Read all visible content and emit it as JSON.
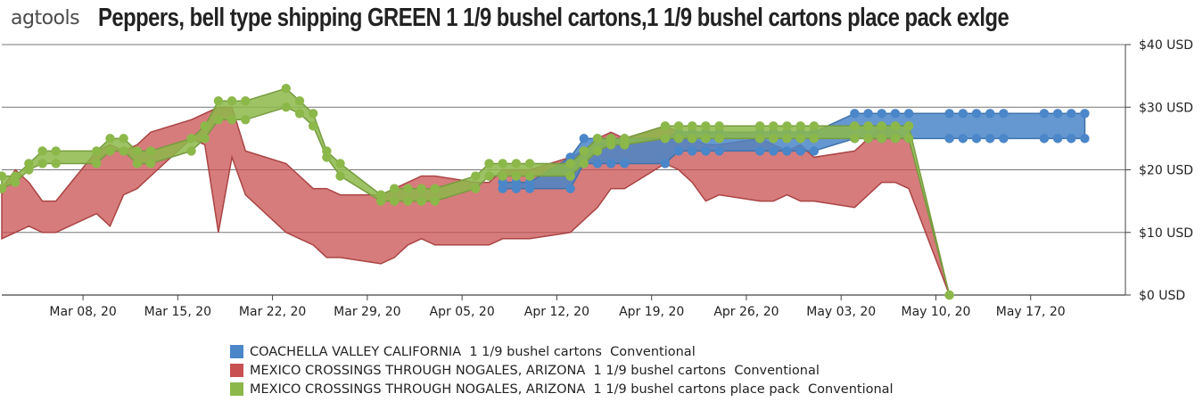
{
  "logo": {
    "text": "agtools"
  },
  "header": {
    "title": "Peppers, bell type shipping GREEN 1 1/9 bushel cartons,1 1/9 bushel cartons place pack exlge"
  },
  "chart_data": {
    "type": "area",
    "title": "Peppers, bell type shipping GREEN 1 1/9 bushel cartons,1 1/9 bushel cartons place pack exlge",
    "xlabel": "",
    "ylabel": "",
    "ylim": [
      0,
      40
    ],
    "yticks": [
      0,
      10,
      20,
      30,
      40
    ],
    "ytick_labels": [
      "$0 USD",
      "$10 USD",
      "$20 USD",
      "$30 USD",
      "$40 USD"
    ],
    "x_range": [
      "2020-03-02",
      "2020-05-24"
    ],
    "xticks": [
      "2020-03-08",
      "2020-03-15",
      "2020-03-22",
      "2020-03-29",
      "2020-04-05",
      "2020-04-12",
      "2020-04-19",
      "2020-04-26",
      "2020-05-03",
      "2020-05-10",
      "2020-05-17"
    ],
    "xtick_labels": [
      "Mar 08, 20",
      "Mar 15, 20",
      "Mar 22, 20",
      "Mar 29, 20",
      "Apr 05, 20",
      "Apr 12, 20",
      "Apr 19, 20",
      "Apr 26, 20",
      "May 03, 20",
      "May 10, 20",
      "May 17, 20"
    ],
    "grid": true,
    "legend_position": "bottom",
    "series": [
      {
        "name": "COACHELLA VALLEY CALIFORNIA  1 1/9 bushel cartons  Conventional",
        "color": "#4a86c8",
        "x": [
          "2020-04-08",
          "2020-04-09",
          "2020-04-10",
          "2020-04-13",
          "2020-04-14",
          "2020-04-15",
          "2020-04-16",
          "2020-04-17",
          "2020-04-20",
          "2020-04-21",
          "2020-04-22",
          "2020-04-23",
          "2020-04-24",
          "2020-04-27",
          "2020-04-28",
          "2020-04-29",
          "2020-04-30",
          "2020-05-01",
          "2020-05-04",
          "2020-05-05",
          "2020-05-06",
          "2020-05-07",
          "2020-05-08",
          "2020-05-11",
          "2020-05-12",
          "2020-05-13",
          "2020-05-14",
          "2020-05-15",
          "2020-05-18",
          "2020-05-19",
          "2020-05-20",
          "2020-05-21"
        ],
        "low": [
          17,
          17,
          17,
          17,
          21,
          21,
          21,
          21,
          21,
          23,
          23,
          23,
          23,
          23,
          23,
          23,
          23,
          23,
          25,
          25,
          25,
          25,
          25,
          25,
          25,
          25,
          25,
          25,
          25,
          25,
          25,
          25
        ],
        "high": [
          18,
          18,
          18,
          22,
          25,
          25,
          25,
          25,
          25,
          26,
          26,
          26,
          26,
          26,
          26,
          26,
          26,
          26,
          29,
          29,
          29,
          29,
          29,
          29,
          29,
          29,
          29,
          29,
          29,
          29,
          29,
          29
        ]
      },
      {
        "name": "MEXICO CROSSINGS THROUGH NOGALES, ARIZONA  1 1/9 bushel cartons  Conventional",
        "color": "#c85050",
        "x": [
          "2020-03-02",
          "2020-03-03",
          "2020-03-04",
          "2020-03-05",
          "2020-03-06",
          "2020-03-09",
          "2020-03-10",
          "2020-03-11",
          "2020-03-12",
          "2020-03-13",
          "2020-03-16",
          "2020-03-17",
          "2020-03-18",
          "2020-03-19",
          "2020-03-20",
          "2020-03-23",
          "2020-03-24",
          "2020-03-25",
          "2020-03-26",
          "2020-03-27",
          "2020-03-30",
          "2020-03-31",
          "2020-04-01",
          "2020-04-02",
          "2020-04-03",
          "2020-04-06",
          "2020-04-07",
          "2020-04-08",
          "2020-04-09",
          "2020-04-10",
          "2020-04-13",
          "2020-04-14",
          "2020-04-15",
          "2020-04-16",
          "2020-04-17",
          "2020-04-20",
          "2020-04-21",
          "2020-04-22",
          "2020-04-23",
          "2020-04-24",
          "2020-04-27",
          "2020-04-28",
          "2020-04-29",
          "2020-04-30",
          "2020-05-01",
          "2020-05-04",
          "2020-05-05",
          "2020-05-06",
          "2020-05-07",
          "2020-05-08",
          "2020-05-11"
        ],
        "low": [
          9,
          10,
          11,
          10,
          10,
          13,
          11,
          16,
          17,
          19,
          25,
          24,
          10,
          22,
          16,
          10,
          9,
          8,
          6,
          6,
          5,
          6,
          8,
          9,
          8,
          8,
          8,
          9,
          9,
          9,
          10,
          12,
          14,
          17,
          17,
          21,
          20,
          18,
          15,
          16,
          15,
          15,
          16,
          15,
          15,
          14,
          16,
          18,
          18,
          17,
          0
        ],
        "high": [
          17,
          20,
          18,
          15,
          15,
          23,
          24,
          23,
          24,
          26,
          28,
          29,
          30,
          30,
          23,
          21,
          19,
          17,
          17,
          16,
          16,
          17,
          18,
          19,
          19,
          18,
          18,
          20,
          20,
          20,
          22,
          23,
          25,
          26,
          25,
          27,
          26,
          25,
          24,
          24,
          25,
          24,
          23,
          24,
          22,
          23,
          25,
          27,
          26,
          25,
          0
        ]
      },
      {
        "name": "MEXICO CROSSINGS THROUGH NOGALES, ARIZONA  1 1/9 bushel cartons place pack  Conventional",
        "color": "#8cb84a",
        "x": [
          "2020-03-02",
          "2020-03-03",
          "2020-03-04",
          "2020-03-05",
          "2020-03-06",
          "2020-03-09",
          "2020-03-10",
          "2020-03-11",
          "2020-03-12",
          "2020-03-13",
          "2020-03-16",
          "2020-03-17",
          "2020-03-18",
          "2020-03-19",
          "2020-03-20",
          "2020-03-23",
          "2020-03-24",
          "2020-03-25",
          "2020-03-26",
          "2020-03-27",
          "2020-03-30",
          "2020-03-31",
          "2020-04-01",
          "2020-04-02",
          "2020-04-03",
          "2020-04-06",
          "2020-04-07",
          "2020-04-08",
          "2020-04-09",
          "2020-04-10",
          "2020-04-13",
          "2020-04-14",
          "2020-04-15",
          "2020-04-16",
          "2020-04-17",
          "2020-04-20",
          "2020-04-21",
          "2020-04-22",
          "2020-04-23",
          "2020-04-24",
          "2020-04-27",
          "2020-04-28",
          "2020-04-29",
          "2020-04-30",
          "2020-05-01",
          "2020-05-04",
          "2020-05-05",
          "2020-05-06",
          "2020-05-07",
          "2020-05-08",
          "2020-05-11"
        ],
        "low": [
          17,
          18,
          20,
          21,
          21,
          21,
          23,
          23,
          21,
          21,
          23,
          25,
          28,
          28,
          28,
          30,
          29,
          27,
          22,
          19,
          15,
          15,
          15,
          15,
          15,
          17,
          19,
          19,
          19,
          19,
          19,
          21,
          23,
          24,
          24,
          25,
          25,
          25,
          25,
          25,
          25,
          25,
          25,
          25,
          25,
          25,
          25,
          25,
          25,
          25,
          0
        ],
        "high": [
          19,
          19,
          21,
          23,
          23,
          23,
          25,
          25,
          23,
          23,
          25,
          27,
          31,
          31,
          31,
          33,
          31,
          29,
          23,
          21,
          16,
          17,
          17,
          17,
          17,
          19,
          21,
          21,
          21,
          21,
          21,
          23,
          25,
          25,
          25,
          27,
          27,
          27,
          27,
          27,
          27,
          27,
          27,
          27,
          27,
          27,
          27,
          27,
          27,
          27,
          0
        ]
      }
    ]
  }
}
